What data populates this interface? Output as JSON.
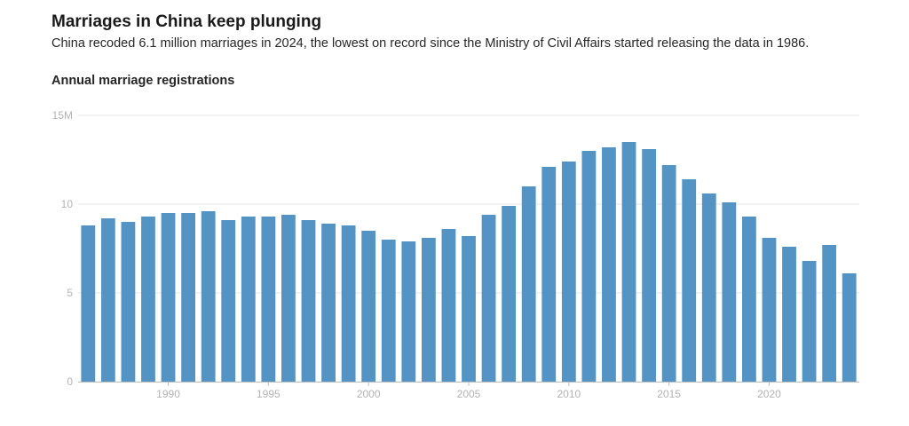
{
  "header": {
    "title": "Marriages in China keep plunging",
    "subtitle": "China recoded 6.1 million marriages in 2024, the lowest on record since the Ministry of Civil Affairs started releasing the data in 1986.",
    "chart_heading": "Annual marriage registrations"
  },
  "colors": {
    "bar": "#5394c5",
    "grid": "#e6e6e6",
    "axis": "#bdbdbd"
  },
  "chart_data": {
    "type": "bar",
    "title": "Annual marriage registrations",
    "x": [
      1986,
      1987,
      1988,
      1989,
      1990,
      1991,
      1992,
      1993,
      1994,
      1995,
      1996,
      1997,
      1998,
      1999,
      2000,
      2001,
      2002,
      2003,
      2004,
      2005,
      2006,
      2007,
      2008,
      2009,
      2010,
      2011,
      2012,
      2013,
      2014,
      2015,
      2016,
      2017,
      2018,
      2019,
      2020,
      2021,
      2022,
      2023,
      2024
    ],
    "values": [
      8.8,
      9.2,
      9.0,
      9.3,
      9.5,
      9.5,
      9.6,
      9.1,
      9.3,
      9.3,
      9.4,
      9.1,
      8.9,
      8.8,
      8.5,
      8.0,
      7.9,
      8.1,
      8.6,
      8.2,
      9.4,
      9.9,
      11.0,
      12.1,
      12.4,
      13.0,
      13.2,
      13.5,
      13.1,
      12.2,
      11.4,
      10.6,
      10.1,
      9.3,
      8.1,
      7.6,
      6.8,
      7.7,
      6.1
    ],
    "y_ticks": [
      {
        "value": 0,
        "label": "0"
      },
      {
        "value": 5,
        "label": "5"
      },
      {
        "value": 10,
        "label": "10"
      },
      {
        "value": 15,
        "label": "15M"
      }
    ],
    "x_ticks": [
      {
        "value": 1990,
        "label": "1990"
      },
      {
        "value": 1995,
        "label": "1995"
      },
      {
        "value": 2000,
        "label": "2000"
      },
      {
        "value": 2005,
        "label": "2005"
      },
      {
        "value": 2010,
        "label": "2010"
      },
      {
        "value": 2015,
        "label": "2015"
      },
      {
        "value": 2020,
        "label": "2020"
      }
    ],
    "ylim": [
      0,
      15
    ],
    "grid": true,
    "legend": "none"
  }
}
